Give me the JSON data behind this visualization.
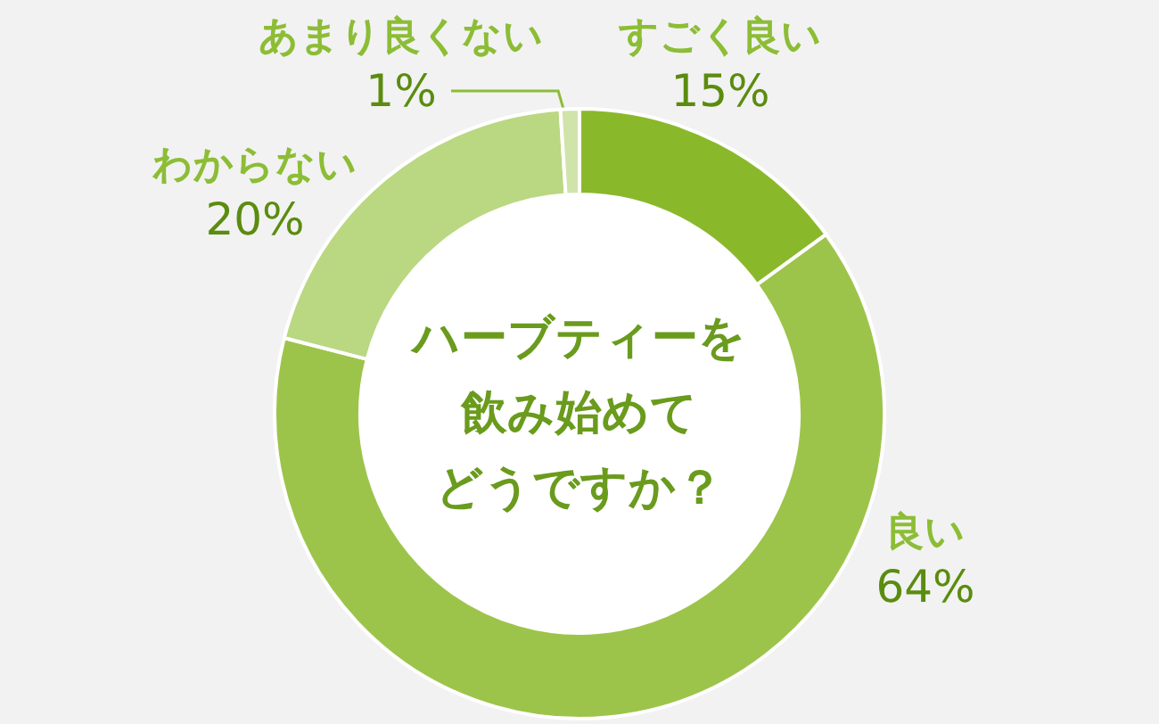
{
  "chart_data": {
    "type": "donut",
    "title": "ハーブティーを飲み始めてどうですか？",
    "categories": [
      "すごく良い",
      "良い",
      "わからない",
      "あまり良くない"
    ],
    "values": [
      15,
      64,
      20,
      1
    ],
    "value_labels": [
      "15%",
      "64%",
      "20%",
      "1%"
    ],
    "colors": [
      "#8ab82b",
      "#9dc44a",
      "#bad782",
      "#d0e4aa"
    ],
    "legend": false
  }
}
